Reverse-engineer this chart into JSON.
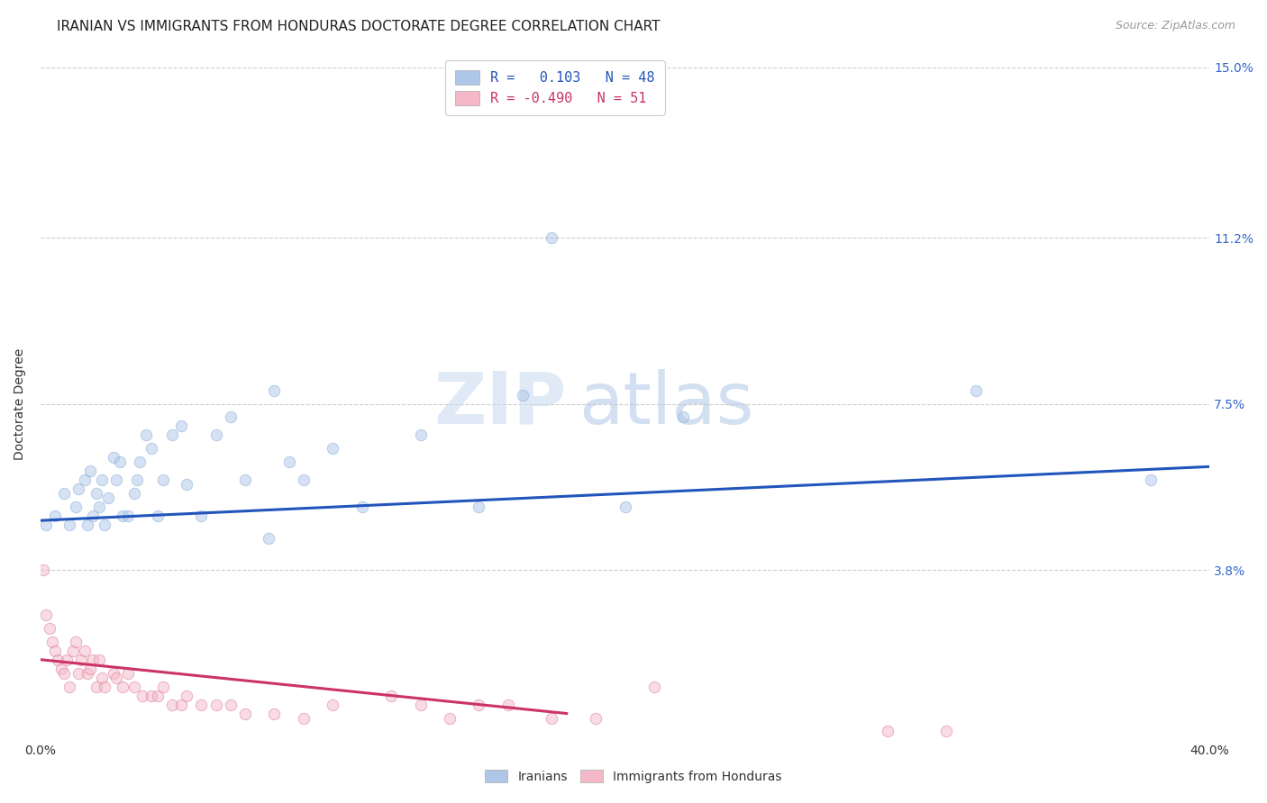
{
  "title": "IRANIAN VS IMMIGRANTS FROM HONDURAS DOCTORATE DEGREE CORRELATION CHART",
  "source": "Source: ZipAtlas.com",
  "ylabel": "Doctorate Degree",
  "xlim": [
    0.0,
    0.4
  ],
  "ylim": [
    0.0,
    0.15
  ],
  "xticks": [
    0.0,
    0.1,
    0.2,
    0.3,
    0.4
  ],
  "xticklabels": [
    "0.0%",
    "",
    "",
    "",
    "40.0%"
  ],
  "ytick_positions": [
    0.0,
    0.038,
    0.075,
    0.112,
    0.15
  ],
  "yticklabels": [
    "",
    "3.8%",
    "7.5%",
    "11.2%",
    "15.0%"
  ],
  "watermark_zip": "ZIP",
  "watermark_atlas": "atlas",
  "iranians_color": "#aec6e8",
  "iranians_edge": "#7aa8d4",
  "honduras_color": "#f4b8c8",
  "honduras_edge": "#d87090",
  "regression_iranian_color": "#2255bb",
  "regression_honduras_color": "#cc3366",
  "background_color": "#ffffff",
  "grid_color": "#cccccc",
  "title_fontsize": 11,
  "axis_label_fontsize": 10,
  "tick_fontsize": 10,
  "scatter_size": 80,
  "scatter_alpha": 0.5,
  "line_width": 2.2,
  "iranians_x": [
    0.002,
    0.005,
    0.008,
    0.01,
    0.012,
    0.013,
    0.015,
    0.016,
    0.017,
    0.018,
    0.019,
    0.02,
    0.021,
    0.022,
    0.023,
    0.025,
    0.026,
    0.027,
    0.028,
    0.03,
    0.032,
    0.033,
    0.034,
    0.036,
    0.038,
    0.04,
    0.042,
    0.045,
    0.048,
    0.05,
    0.055,
    0.06,
    0.065,
    0.07,
    0.078,
    0.08,
    0.085,
    0.09,
    0.1,
    0.11,
    0.13,
    0.15,
    0.165,
    0.175,
    0.2,
    0.22,
    0.32,
    0.38
  ],
  "iranians_y": [
    0.048,
    0.05,
    0.055,
    0.048,
    0.052,
    0.056,
    0.058,
    0.048,
    0.06,
    0.05,
    0.055,
    0.052,
    0.058,
    0.048,
    0.054,
    0.063,
    0.058,
    0.062,
    0.05,
    0.05,
    0.055,
    0.058,
    0.062,
    0.068,
    0.065,
    0.05,
    0.058,
    0.068,
    0.07,
    0.057,
    0.05,
    0.068,
    0.072,
    0.058,
    0.045,
    0.078,
    0.062,
    0.058,
    0.065,
    0.052,
    0.068,
    0.052,
    0.077,
    0.112,
    0.052,
    0.072,
    0.078,
    0.058
  ],
  "honduras_x": [
    0.001,
    0.002,
    0.003,
    0.004,
    0.005,
    0.006,
    0.007,
    0.008,
    0.009,
    0.01,
    0.011,
    0.012,
    0.013,
    0.014,
    0.015,
    0.016,
    0.017,
    0.018,
    0.019,
    0.02,
    0.021,
    0.022,
    0.025,
    0.026,
    0.028,
    0.03,
    0.032,
    0.035,
    0.038,
    0.04,
    0.042,
    0.045,
    0.048,
    0.05,
    0.055,
    0.06,
    0.065,
    0.07,
    0.08,
    0.09,
    0.1,
    0.12,
    0.13,
    0.14,
    0.15,
    0.16,
    0.175,
    0.19,
    0.21,
    0.29,
    0.31
  ],
  "honduras_y": [
    0.038,
    0.028,
    0.025,
    0.022,
    0.02,
    0.018,
    0.016,
    0.015,
    0.018,
    0.012,
    0.02,
    0.022,
    0.015,
    0.018,
    0.02,
    0.015,
    0.016,
    0.018,
    0.012,
    0.018,
    0.014,
    0.012,
    0.015,
    0.014,
    0.012,
    0.015,
    0.012,
    0.01,
    0.01,
    0.01,
    0.012,
    0.008,
    0.008,
    0.01,
    0.008,
    0.008,
    0.008,
    0.006,
    0.006,
    0.005,
    0.008,
    0.01,
    0.008,
    0.005,
    0.008,
    0.008,
    0.005,
    0.005,
    0.012,
    0.002,
    0.002
  ]
}
